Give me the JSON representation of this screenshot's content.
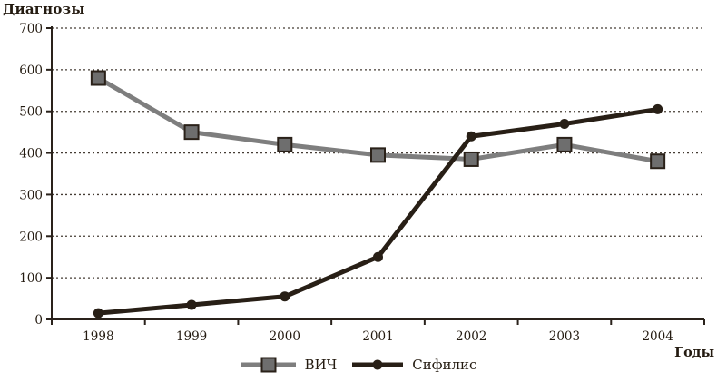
{
  "chart": {
    "y_axis_title": "Диагнозы",
    "x_axis_title": "Годы"
  },
  "chart_data": {
    "type": "line",
    "title": "Диагнозы",
    "xlabel": "Годы",
    "ylabel": "Диагнозы",
    "categories": [
      "1998",
      "1999",
      "2000",
      "2001",
      "2002",
      "2003",
      "2004"
    ],
    "yticks": [
      0,
      100,
      200,
      300,
      400,
      500,
      600,
      700
    ],
    "ylim": [
      0,
      700
    ],
    "grid": "horizontal-dashed",
    "legend_position": "bottom-center",
    "series": [
      {
        "name": "ВИЧ",
        "marker": "square",
        "color": "#7e7e7e",
        "marker_fill": "#6e6e6e",
        "marker_stroke": "#2a2119",
        "values": [
          580,
          450,
          420,
          395,
          385,
          420,
          380
        ]
      },
      {
        "name": "Сифилис",
        "marker": "circle",
        "color": "#281f16",
        "marker_fill": "#281f16",
        "marker_stroke": "#281f16",
        "values": [
          15,
          35,
          55,
          150,
          440,
          470,
          505
        ]
      }
    ]
  },
  "colors": {
    "text": "#241b11",
    "axis": "#2a221b",
    "grid": "#453c34",
    "background": "#ffffff"
  }
}
